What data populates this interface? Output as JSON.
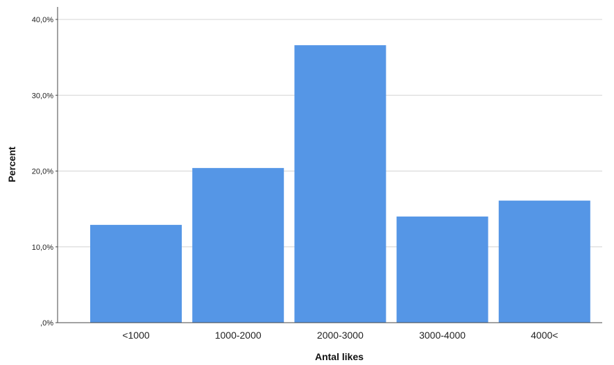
{
  "chart_data": {
    "type": "bar",
    "categories": [
      "<1000",
      "1000-2000",
      "2000-3000",
      "3000-4000",
      "4000<"
    ],
    "values": [
      12.9,
      20.4,
      36.6,
      14.0,
      16.1
    ],
    "xlabel": "Antal likes",
    "ylabel": "Percent",
    "ylim": [
      0,
      40
    ],
    "yticks": [
      0,
      10,
      20,
      30,
      40
    ],
    "ytick_labels": [
      ",0%",
      "10,0%",
      "20,0%",
      "30,0%",
      "40,0%"
    ],
    "grid": true,
    "colors": {
      "bar": "#5596e6",
      "grid": "#d4d4d4",
      "axis": "#444444"
    }
  }
}
